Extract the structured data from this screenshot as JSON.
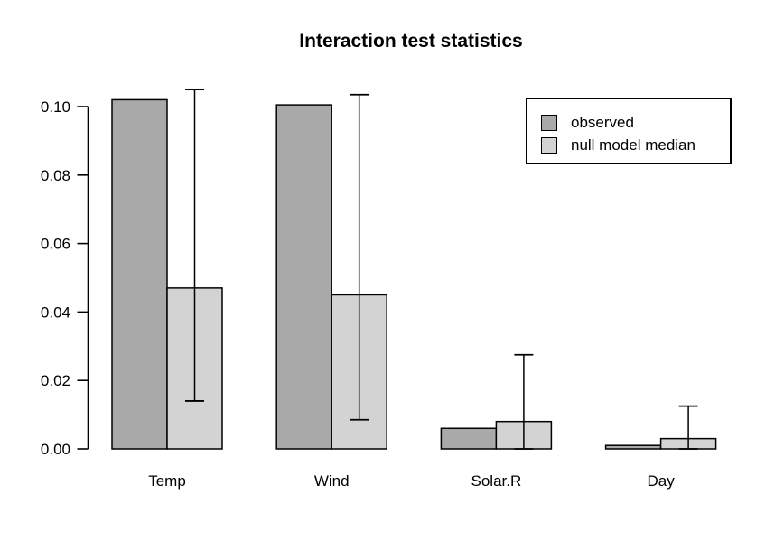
{
  "title": "Interaction test statistics",
  "chart_data": {
    "type": "bar",
    "title": "Interaction test statistics",
    "xlabel": "",
    "ylabel": "",
    "categories": [
      "Temp",
      "Wind",
      "Solar.R",
      "Day"
    ],
    "series": [
      {
        "name": "observed",
        "color": "#A9A9A9",
        "values": [
          0.102,
          0.1005,
          0.006,
          0.001
        ]
      },
      {
        "name": "null model median",
        "color": "#D3D3D3",
        "values": [
          0.047,
          0.045,
          0.008,
          0.003
        ]
      }
    ],
    "error_bars": {
      "attached_to": "null model median",
      "high": [
        0.105,
        0.1035,
        0.0275,
        0.0125
      ],
      "low": [
        0.014,
        0.0085,
        0.0,
        0.0
      ]
    },
    "ylim": [
      0,
      0.1
    ],
    "ytick_labels": [
      "0.00",
      "0.02",
      "0.04",
      "0.06",
      "0.08",
      "0.10"
    ],
    "grid": false,
    "legend": {
      "position": "top-right",
      "border": true,
      "entries": [
        "observed",
        "null model median"
      ]
    }
  },
  "colors": {
    "background": "#FFFFFF",
    "axis": "#000000",
    "bar_stroke": "#000000",
    "observed_fill": "#A9A9A9",
    "null_median_fill": "#D3D3D3"
  }
}
